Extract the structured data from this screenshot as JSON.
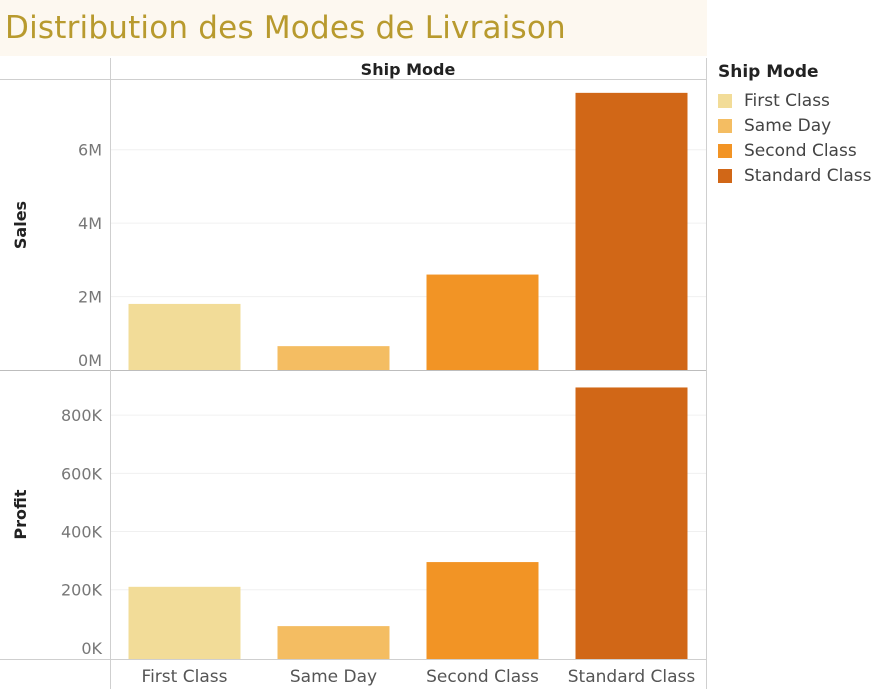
{
  "title": "Distribution des Modes de Livraison",
  "legend": {
    "title": "Ship Mode",
    "items": [
      {
        "label": "First Class",
        "color": "#f2dc98"
      },
      {
        "label": "Same Day",
        "color": "#f4bd62"
      },
      {
        "label": "Second Class",
        "color": "#f29425"
      },
      {
        "label": "Standard Class",
        "color": "#d16717"
      }
    ]
  },
  "chart_data": {
    "type": "bar",
    "column_header": "Ship Mode",
    "categories": [
      "First Class",
      "Same Day",
      "Second Class",
      "Standard Class"
    ],
    "colors": [
      "#f2dc98",
      "#f4bd62",
      "#f29425",
      "#d16717"
    ],
    "panels": [
      {
        "measure": "Sales",
        "values": [
          1800000,
          650000,
          2600000,
          7550000
        ],
        "ylim": [
          0,
          7900000
        ],
        "ticks": [
          0,
          2000000,
          4000000,
          6000000
        ],
        "tick_labels": [
          "0M",
          "2M",
          "4M",
          "6M"
        ]
      },
      {
        "measure": "Profit",
        "values": [
          210000,
          75000,
          295000,
          895000
        ],
        "ylim": [
          -38000,
          955000
        ],
        "ticks": [
          0,
          200000,
          400000,
          600000,
          800000
        ],
        "tick_labels": [
          "0K",
          "200K",
          "400K",
          "600K",
          "800K"
        ]
      }
    ],
    "grid": true,
    "legend_position": "right"
  }
}
